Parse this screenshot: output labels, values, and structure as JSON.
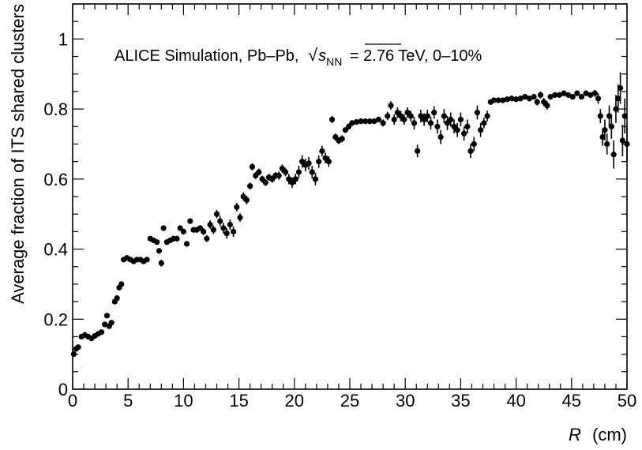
{
  "chart_data": {
    "type": "scatter",
    "title": "",
    "annotation": {
      "prefix": "ALICE Simulation, Pb–Pb,",
      "sqrt_symbol": "√",
      "s_symbol": "s",
      "s_subscript": "NN",
      "suffix": "= 2.76 TeV, 0–10%"
    },
    "xlabel_var": "R",
    "xlabel_unit": "(cm)",
    "ylabel": "Average fraction of ITS shared clusters",
    "xlim": [
      0,
      50
    ],
    "ylim": [
      0,
      1.1
    ],
    "x_tick_labels": [
      "0",
      "5",
      "10",
      "15",
      "20",
      "25",
      "30",
      "35",
      "40",
      "45",
      "50"
    ],
    "y_tick_labels": [
      "0",
      "0.2",
      "0.4",
      "0.6",
      "0.8",
      "1"
    ],
    "x_major_step": 5,
    "x_minor_step": 1,
    "y_major_step": 0.2,
    "y_minor_step": 0.05,
    "grid": false,
    "marker_color": "#000000",
    "points": [
      [
        0.1,
        0.1,
        0.005
      ],
      [
        0.3,
        0.115,
        0.005
      ],
      [
        0.5,
        0.12,
        0.005
      ],
      [
        0.8,
        0.15,
        0.005
      ],
      [
        1.1,
        0.155,
        0.005
      ],
      [
        1.4,
        0.15,
        0.005
      ],
      [
        1.7,
        0.145,
        0.005
      ],
      [
        2.0,
        0.152,
        0.005
      ],
      [
        2.3,
        0.158,
        0.005
      ],
      [
        2.6,
        0.163,
        0.005
      ],
      [
        2.9,
        0.185,
        0.006
      ],
      [
        3.1,
        0.21,
        0.006
      ],
      [
        3.3,
        0.18,
        0.006
      ],
      [
        3.5,
        0.19,
        0.006
      ],
      [
        3.8,
        0.25,
        0.006
      ],
      [
        4.0,
        0.26,
        0.006
      ],
      [
        4.2,
        0.29,
        0.006
      ],
      [
        4.4,
        0.3,
        0.006
      ],
      [
        4.6,
        0.37,
        0.006
      ],
      [
        4.9,
        0.375,
        0.006
      ],
      [
        5.2,
        0.37,
        0.006
      ],
      [
        5.5,
        0.365,
        0.006
      ],
      [
        5.8,
        0.37,
        0.006
      ],
      [
        6.1,
        0.37,
        0.006
      ],
      [
        6.4,
        0.365,
        0.006
      ],
      [
        6.7,
        0.37,
        0.006
      ],
      [
        7.0,
        0.43,
        0.006
      ],
      [
        7.3,
        0.425,
        0.006
      ],
      [
        7.6,
        0.42,
        0.006
      ],
      [
        7.8,
        0.395,
        0.008
      ],
      [
        8.0,
        0.36,
        0.01
      ],
      [
        8.2,
        0.46,
        0.008
      ],
      [
        8.5,
        0.42,
        0.008
      ],
      [
        8.8,
        0.425,
        0.008
      ],
      [
        9.1,
        0.43,
        0.008
      ],
      [
        9.4,
        0.43,
        0.008
      ],
      [
        9.7,
        0.46,
        0.008
      ],
      [
        10.0,
        0.45,
        0.008
      ],
      [
        10.3,
        0.415,
        0.008
      ],
      [
        10.6,
        0.48,
        0.008
      ],
      [
        10.9,
        0.455,
        0.008
      ],
      [
        11.2,
        0.455,
        0.008
      ],
      [
        11.5,
        0.46,
        0.008
      ],
      [
        11.8,
        0.45,
        0.01
      ],
      [
        12.1,
        0.43,
        0.01
      ],
      [
        12.4,
        0.47,
        0.012
      ],
      [
        12.7,
        0.455,
        0.012
      ],
      [
        13.0,
        0.5,
        0.012
      ],
      [
        13.3,
        0.48,
        0.015
      ],
      [
        13.6,
        0.46,
        0.015
      ],
      [
        13.9,
        0.445,
        0.015
      ],
      [
        14.2,
        0.47,
        0.015
      ],
      [
        14.5,
        0.45,
        0.015
      ],
      [
        14.8,
        0.52,
        0.012
      ],
      [
        15.1,
        0.49,
        0.012
      ],
      [
        15.4,
        0.55,
        0.012
      ],
      [
        15.7,
        0.54,
        0.012
      ],
      [
        16.0,
        0.58,
        0.01
      ],
      [
        16.2,
        0.635,
        0.01
      ],
      [
        16.5,
        0.61,
        0.01
      ],
      [
        16.8,
        0.62,
        0.01
      ],
      [
        17.1,
        0.6,
        0.01
      ],
      [
        17.4,
        0.59,
        0.01
      ],
      [
        17.7,
        0.605,
        0.01
      ],
      [
        18.0,
        0.6,
        0.01
      ],
      [
        18.3,
        0.61,
        0.01
      ],
      [
        18.6,
        0.61,
        0.012
      ],
      [
        18.9,
        0.63,
        0.012
      ],
      [
        19.2,
        0.62,
        0.012
      ],
      [
        19.5,
        0.6,
        0.015
      ],
      [
        19.8,
        0.59,
        0.015
      ],
      [
        20.1,
        0.6,
        0.015
      ],
      [
        20.4,
        0.62,
        0.018
      ],
      [
        20.7,
        0.65,
        0.018
      ],
      [
        21.0,
        0.64,
        0.018
      ],
      [
        21.3,
        0.645,
        0.018
      ],
      [
        21.6,
        0.62,
        0.018
      ],
      [
        21.9,
        0.6,
        0.018
      ],
      [
        22.2,
        0.65,
        0.018
      ],
      [
        22.5,
        0.68,
        0.015
      ],
      [
        22.8,
        0.66,
        0.015
      ],
      [
        23.1,
        0.65,
        0.015
      ],
      [
        23.4,
        0.77,
        0.01
      ],
      [
        23.7,
        0.72,
        0.01
      ],
      [
        24.0,
        0.71,
        0.01
      ],
      [
        24.3,
        0.715,
        0.01
      ],
      [
        24.6,
        0.74,
        0.008
      ],
      [
        24.9,
        0.75,
        0.008
      ],
      [
        25.2,
        0.76,
        0.008
      ],
      [
        25.6,
        0.763,
        0.008
      ],
      [
        26.0,
        0.765,
        0.008
      ],
      [
        26.4,
        0.765,
        0.008
      ],
      [
        26.8,
        0.765,
        0.008
      ],
      [
        27.2,
        0.765,
        0.008
      ],
      [
        27.6,
        0.77,
        0.008
      ],
      [
        28.0,
        0.76,
        0.01
      ],
      [
        28.4,
        0.78,
        0.012
      ],
      [
        28.7,
        0.81,
        0.012
      ],
      [
        29.0,
        0.77,
        0.015
      ],
      [
        29.3,
        0.79,
        0.015
      ],
      [
        29.6,
        0.78,
        0.015
      ],
      [
        29.9,
        0.77,
        0.015
      ],
      [
        30.2,
        0.79,
        0.015
      ],
      [
        30.5,
        0.78,
        0.015
      ],
      [
        30.8,
        0.76,
        0.018
      ],
      [
        31.1,
        0.68,
        0.018
      ],
      [
        31.4,
        0.78,
        0.018
      ],
      [
        31.7,
        0.77,
        0.018
      ],
      [
        32.0,
        0.78,
        0.018
      ],
      [
        32.3,
        0.76,
        0.018
      ],
      [
        32.6,
        0.79,
        0.018
      ],
      [
        32.9,
        0.75,
        0.02
      ],
      [
        33.2,
        0.72,
        0.02
      ],
      [
        33.5,
        0.78,
        0.02
      ],
      [
        33.8,
        0.76,
        0.02
      ],
      [
        34.1,
        0.77,
        0.02
      ],
      [
        34.4,
        0.75,
        0.02
      ],
      [
        34.7,
        0.74,
        0.02
      ],
      [
        35.0,
        0.77,
        0.02
      ],
      [
        35.3,
        0.73,
        0.02
      ],
      [
        35.6,
        0.75,
        0.02
      ],
      [
        35.9,
        0.68,
        0.02
      ],
      [
        36.2,
        0.7,
        0.02
      ],
      [
        36.5,
        0.79,
        0.02
      ],
      [
        36.8,
        0.74,
        0.02
      ],
      [
        37.1,
        0.76,
        0.015
      ],
      [
        37.4,
        0.78,
        0.015
      ],
      [
        37.7,
        0.82,
        0.008
      ],
      [
        38.0,
        0.825,
        0.008
      ],
      [
        38.4,
        0.825,
        0.008
      ],
      [
        38.8,
        0.825,
        0.008
      ],
      [
        39.2,
        0.828,
        0.008
      ],
      [
        39.6,
        0.83,
        0.008
      ],
      [
        40.0,
        0.828,
        0.008
      ],
      [
        40.4,
        0.83,
        0.008
      ],
      [
        40.8,
        0.835,
        0.008
      ],
      [
        41.2,
        0.83,
        0.008
      ],
      [
        41.6,
        0.835,
        0.008
      ],
      [
        41.9,
        0.82,
        0.01
      ],
      [
        42.2,
        0.84,
        0.01
      ],
      [
        42.5,
        0.82,
        0.012
      ],
      [
        42.8,
        0.81,
        0.012
      ],
      [
        43.1,
        0.835,
        0.008
      ],
      [
        43.5,
        0.84,
        0.008
      ],
      [
        43.9,
        0.84,
        0.008
      ],
      [
        44.3,
        0.845,
        0.008
      ],
      [
        44.7,
        0.84,
        0.008
      ],
      [
        45.1,
        0.835,
        0.008
      ],
      [
        45.5,
        0.845,
        0.008
      ],
      [
        45.9,
        0.835,
        0.008
      ],
      [
        46.3,
        0.845,
        0.008
      ],
      [
        46.7,
        0.84,
        0.008
      ],
      [
        47.1,
        0.845,
        0.01
      ],
      [
        47.4,
        0.83,
        0.015
      ],
      [
        47.6,
        0.78,
        0.02
      ],
      [
        47.8,
        0.72,
        0.025
      ],
      [
        48.0,
        0.74,
        0.03
      ],
      [
        48.2,
        0.7,
        0.03
      ],
      [
        48.4,
        0.78,
        0.03
      ],
      [
        48.6,
        0.75,
        0.035
      ],
      [
        48.8,
        0.67,
        0.04
      ],
      [
        49.0,
        0.8,
        0.04
      ],
      [
        49.2,
        0.83,
        0.04
      ],
      [
        49.4,
        0.86,
        0.045
      ],
      [
        49.6,
        0.71,
        0.045
      ],
      [
        49.8,
        0.78,
        0.05
      ],
      [
        50.0,
        0.7,
        0.05
      ]
    ]
  }
}
